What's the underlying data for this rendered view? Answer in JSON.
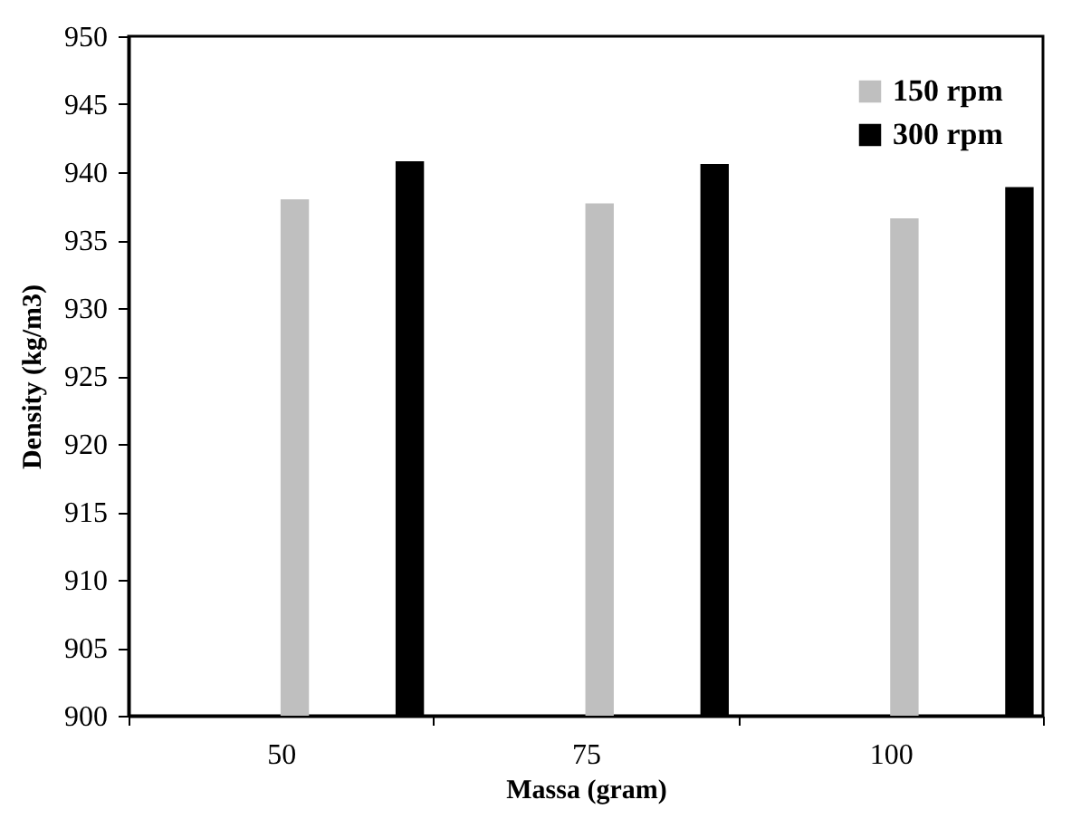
{
  "chart_data": {
    "type": "bar",
    "xlabel": "Massa (gram)",
    "ylabel": "Density (kg/m3)",
    "categories": [
      "50",
      "75",
      "100"
    ],
    "series": [
      {
        "name": "150 rpm",
        "color": "#bfbfbf",
        "values": [
          938.0,
          937.7,
          936.6
        ]
      },
      {
        "name": "300 rpm",
        "color": "#000000",
        "values": [
          940.8,
          940.6,
          938.9
        ]
      }
    ],
    "ylim": [
      900,
      950
    ],
    "yticks": [
      900,
      905,
      910,
      915,
      920,
      925,
      930,
      935,
      940,
      945,
      950
    ],
    "grid": false,
    "legend": "top right"
  }
}
